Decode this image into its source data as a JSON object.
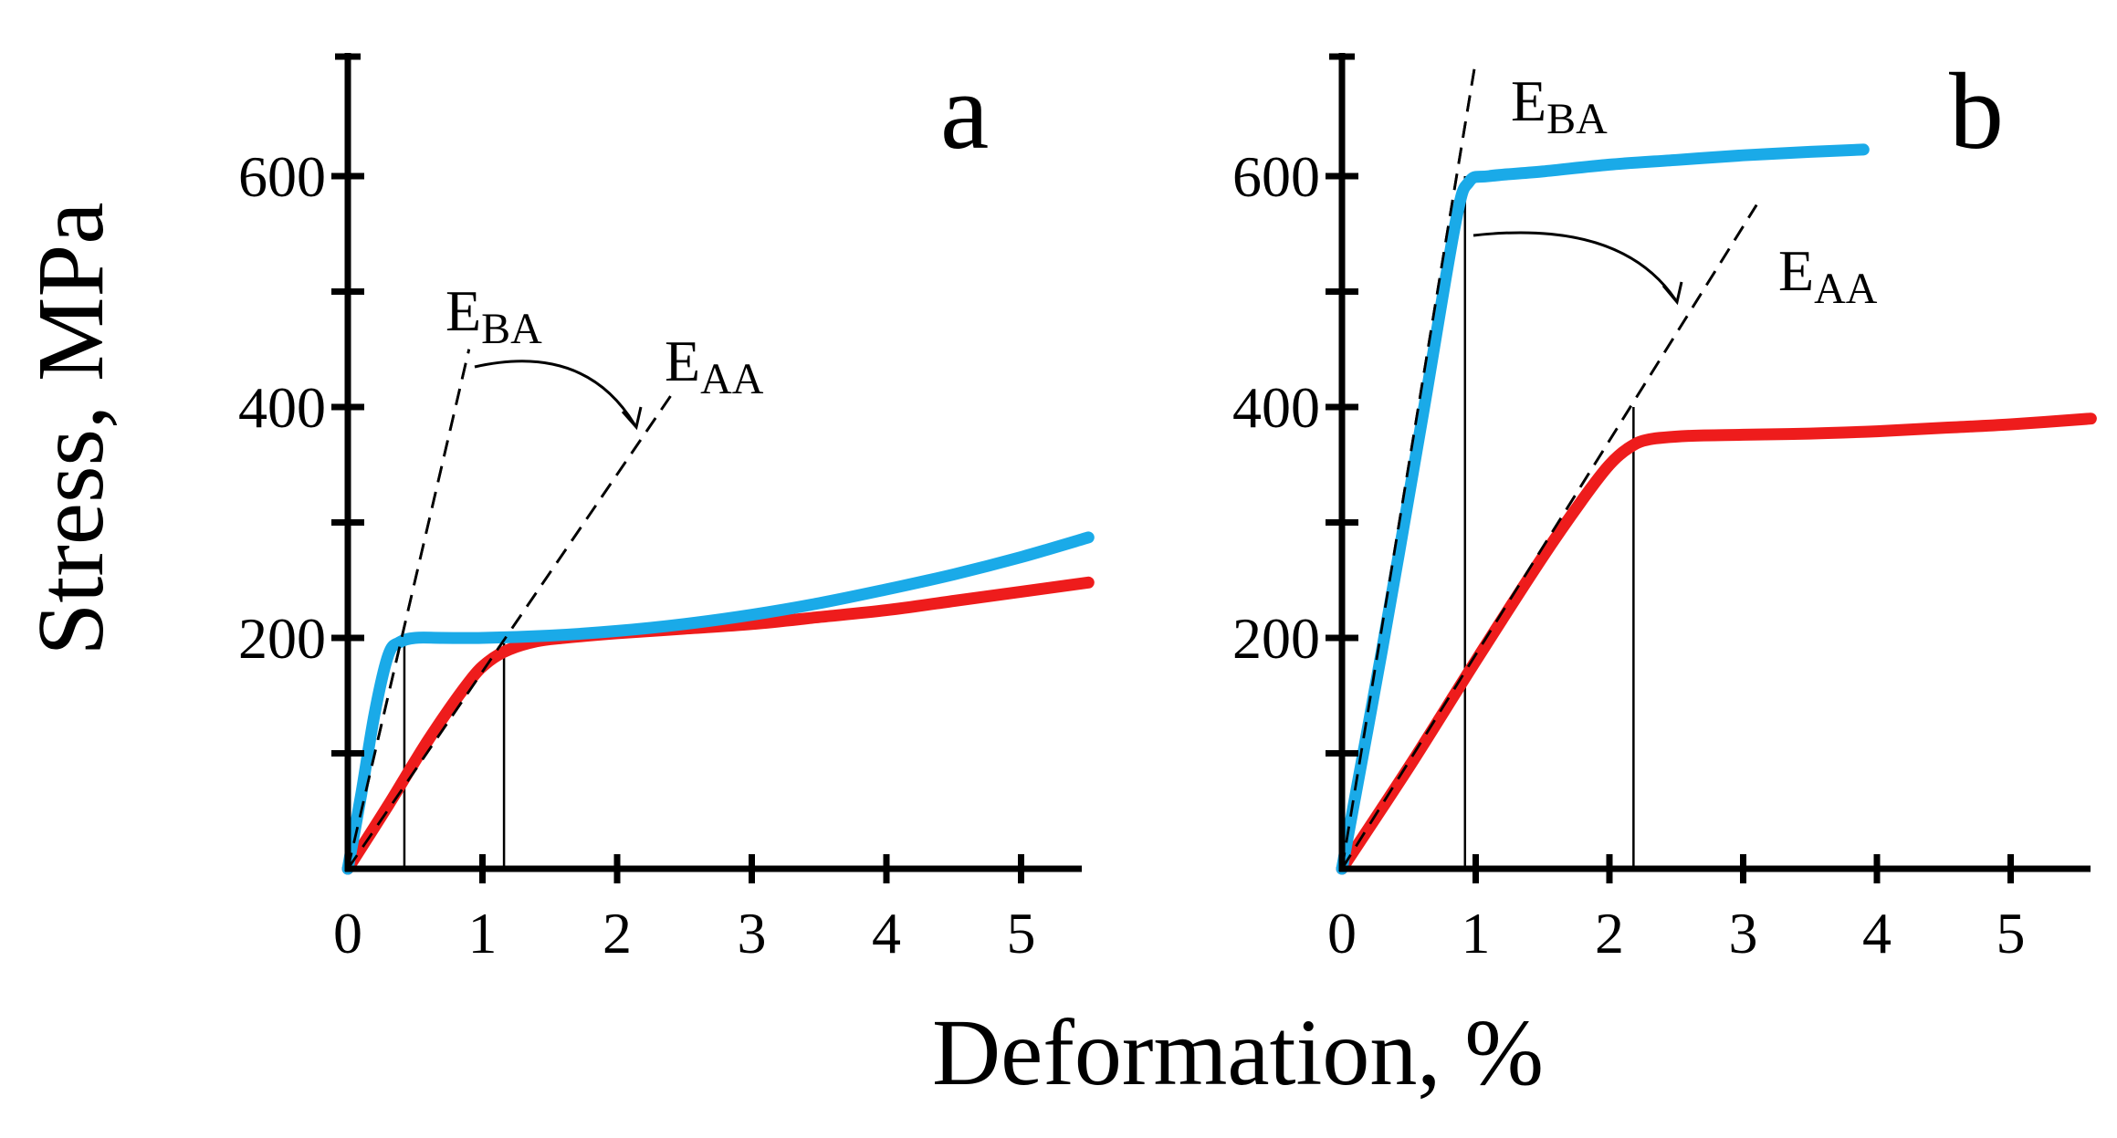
{
  "colors": {
    "blue": "#1aaae8",
    "red": "#ee1c1c",
    "axis": "#000000"
  },
  "labels": {
    "y_axis": "Stress, MPa",
    "x_axis": "Deformation, %"
  },
  "chart_data": [
    {
      "type": "line",
      "panel": "a",
      "xlabel": "Deformation, %",
      "ylabel": "Stress, MPa",
      "xlim": [
        0,
        5.5
      ],
      "ylim": [
        0,
        700
      ],
      "x_ticks": [
        0,
        1,
        2,
        3,
        4,
        5
      ],
      "x_tick_labels": [
        "0",
        "1",
        "2",
        "3",
        "4",
        "5"
      ],
      "y_ticks": [
        100,
        200,
        300,
        400,
        500,
        600
      ],
      "y_tick_labels": [
        {
          "value": 200,
          "text": "200"
        },
        {
          "value": 400,
          "text": "400"
        },
        {
          "value": 600,
          "text": "600"
        }
      ],
      "series": [
        {
          "name": "blue curve",
          "color": "#1aaae8",
          "points": [
            [
              0,
              0
            ],
            [
              0.1,
              65
            ],
            [
              0.2,
              135
            ],
            [
              0.3,
              185
            ],
            [
              0.38,
              196
            ],
            [
              0.5,
              200
            ],
            [
              0.7,
              200
            ],
            [
              1,
              200
            ],
            [
              1.5,
              202
            ],
            [
              2,
              206
            ],
            [
              2.5,
              212
            ],
            [
              3,
              220
            ],
            [
              3.5,
              230
            ],
            [
              4,
              242
            ],
            [
              4.5,
              255
            ],
            [
              5,
              270
            ],
            [
              5.5,
              287
            ]
          ]
        },
        {
          "name": "red curve",
          "color": "#ee1c1c",
          "points": [
            [
              0,
              0
            ],
            [
              0.3,
              55
            ],
            [
              0.6,
              112
            ],
            [
              0.9,
              162
            ],
            [
              1.05,
              180
            ],
            [
              1.2,
              190
            ],
            [
              1.4,
              197
            ],
            [
              1.6,
              200
            ],
            [
              2,
              204
            ],
            [
              2.5,
              208
            ],
            [
              3,
              212
            ],
            [
              3.5,
              218
            ],
            [
              4,
              224
            ],
            [
              4.5,
              232
            ],
            [
              5,
              240
            ],
            [
              5.5,
              248
            ]
          ]
        }
      ],
      "dashed_lines": [
        {
          "label": "E_BA",
          "points": [
            [
              0,
              0
            ],
            [
              0.9,
              450
            ]
          ]
        },
        {
          "label": "E_AA",
          "points": [
            [
              0,
              0
            ],
            [
              2.4,
              410
            ]
          ]
        }
      ],
      "vertical_lines": [
        {
          "x": 0.42,
          "y_top": 200
        },
        {
          "x": 1.16,
          "y_top": 200
        }
      ],
      "annotations": [
        {
          "main": "E",
          "sub": "BA"
        },
        {
          "main": "E",
          "sub": "AA"
        }
      ],
      "arrow": {
        "from": "E_BA",
        "to": "E_AA"
      }
    },
    {
      "type": "line",
      "panel": "b",
      "xlabel": "Deformation, %",
      "ylabel": "Stress, MPa",
      "xlim": [
        0,
        5.6
      ],
      "ylim": [
        0,
        700
      ],
      "x_ticks": [
        0,
        1,
        2,
        3,
        4,
        5
      ],
      "x_tick_labels": [
        "0",
        "1",
        "2",
        "3",
        "4",
        "5"
      ],
      "y_ticks": [
        100,
        200,
        300,
        400,
        500,
        600
      ],
      "y_tick_labels": [
        {
          "value": 200,
          "text": "200"
        },
        {
          "value": 400,
          "text": "400"
        },
        {
          "value": 600,
          "text": "600"
        }
      ],
      "series": [
        {
          "name": "blue curve",
          "color": "#1aaae8",
          "points": [
            [
              0,
              0
            ],
            [
              0.3,
              190
            ],
            [
              0.6,
              390
            ],
            [
              0.85,
              560
            ],
            [
              0.95,
              595
            ],
            [
              1.1,
              600
            ],
            [
              1.5,
              604
            ],
            [
              2,
              610
            ],
            [
              2.5,
              614
            ],
            [
              3,
              618
            ],
            [
              3.5,
              621
            ],
            [
              3.9,
              623
            ]
          ]
        },
        {
          "name": "red curve",
          "color": "#ee1c1c",
          "points": [
            [
              0,
              0
            ],
            [
              0.5,
              88
            ],
            [
              1,
              180
            ],
            [
              1.5,
              270
            ],
            [
              1.8,
              320
            ],
            [
              2,
              350
            ],
            [
              2.15,
              365
            ],
            [
              2.3,
              372
            ],
            [
              2.6,
              375
            ],
            [
              3,
              376
            ],
            [
              3.5,
              377
            ],
            [
              4,
              379
            ],
            [
              4.5,
              382
            ],
            [
              5,
              385
            ],
            [
              5.6,
              390
            ]
          ]
        }
      ],
      "dashed_lines": [
        {
          "label": "E_BA",
          "points": [
            [
              0,
              0
            ],
            [
              1.0,
              700
            ]
          ]
        },
        {
          "label": "E_AA",
          "points": [
            [
              0,
              0
            ],
            [
              3.1,
              575
            ]
          ]
        }
      ],
      "vertical_lines": [
        {
          "x": 0.92,
          "y_top": 600
        },
        {
          "x": 2.18,
          "y_top": 400
        }
      ],
      "annotations": [
        {
          "main": "E",
          "sub": "BA"
        },
        {
          "main": "E",
          "sub": "AA"
        }
      ],
      "arrow": {
        "from": "E_BA",
        "to": "E_AA"
      }
    }
  ]
}
